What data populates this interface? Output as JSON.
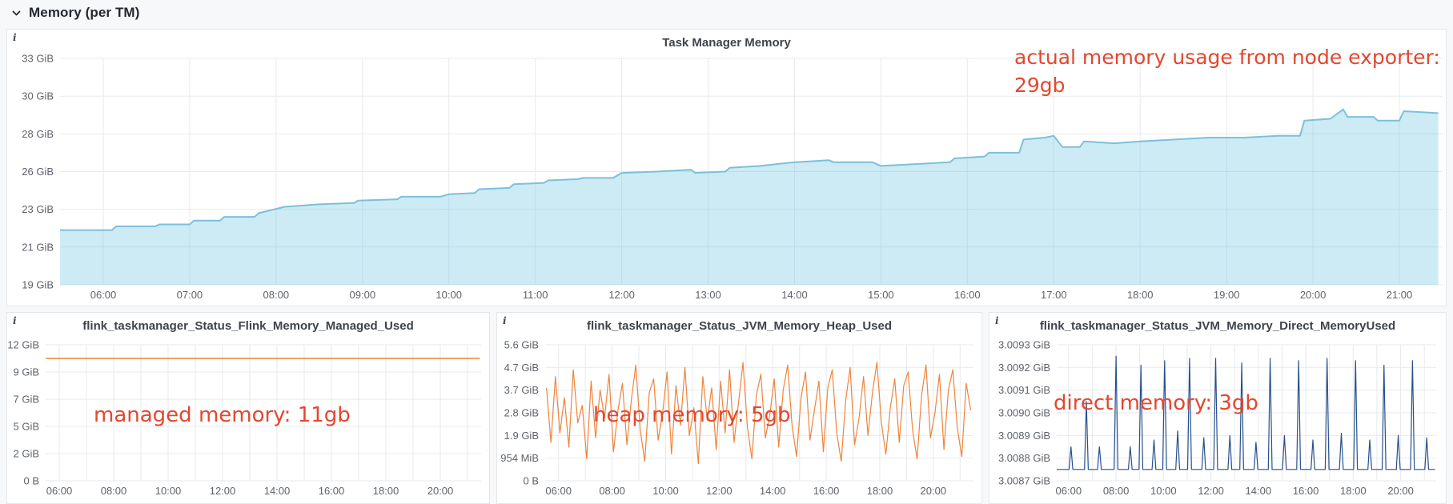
{
  "header": {
    "title": "Memory (per TM)"
  },
  "colors": {
    "annotation_red": "#e3472f",
    "axis_text": "#5e636a",
    "grid": "#e7e9ec",
    "title_text": "#3e434c",
    "area_line": "#7cc0da",
    "area_fill": "#70c5e0",
    "orange": "#EF843C",
    "navy": "#27508c"
  },
  "chart_data": [
    {
      "type": "area",
      "title": "Task Manager Memory",
      "info_icon": "i",
      "annotation": "actual memory usage from node exporter: 29gb",
      "unit": "GiB",
      "x_range": [
        5.5,
        21.5
      ],
      "x_grid": [
        6,
        7,
        8,
        9,
        10,
        11,
        12,
        13,
        14,
        15,
        16,
        17,
        18,
        19,
        20,
        21
      ],
      "x_ticks": [
        {
          "v": 6,
          "label": "06:00"
        },
        {
          "v": 7,
          "label": "07:00"
        },
        {
          "v": 8,
          "label": "08:00"
        },
        {
          "v": 9,
          "label": "09:00"
        },
        {
          "v": 10,
          "label": "10:00"
        },
        {
          "v": 11,
          "label": "11:00"
        },
        {
          "v": 12,
          "label": "12:00"
        },
        {
          "v": 13,
          "label": "13:00"
        },
        {
          "v": 14,
          "label": "14:00"
        },
        {
          "v": 15,
          "label": "15:00"
        },
        {
          "v": 16,
          "label": "16:00"
        },
        {
          "v": 17,
          "label": "17:00"
        },
        {
          "v": 18,
          "label": "18:00"
        },
        {
          "v": 19,
          "label": "19:00"
        },
        {
          "v": 20,
          "label": "20:00"
        },
        {
          "v": 21,
          "label": "21:00"
        }
      ],
      "y_ticks": [
        {
          "v": 19,
          "label": "19 GiB"
        },
        {
          "v": 21,
          "label": "21 GiB"
        },
        {
          "v": 23,
          "label": "23 GiB"
        },
        {
          "v": 26,
          "label": "26 GiB"
        },
        {
          "v": 28,
          "label": "28 GiB"
        },
        {
          "v": 30,
          "label": "30 GiB"
        },
        {
          "v": 33,
          "label": "33 GiB"
        }
      ],
      "color": "#7cc0da",
      "fill": "#70c5e0",
      "points": [
        [
          5.5,
          21.9
        ],
        [
          6.1,
          21.9
        ],
        [
          6.15,
          22.1
        ],
        [
          6.6,
          22.1
        ],
        [
          6.65,
          22.2
        ],
        [
          7.0,
          22.2
        ],
        [
          7.05,
          22.4
        ],
        [
          7.35,
          22.4
        ],
        [
          7.4,
          22.6
        ],
        [
          7.75,
          22.6
        ],
        [
          7.8,
          22.8
        ],
        [
          8.1,
          23.2
        ],
        [
          8.5,
          23.4
        ],
        [
          8.9,
          23.5
        ],
        [
          8.95,
          23.7
        ],
        [
          9.4,
          23.8
        ],
        [
          9.45,
          24.0
        ],
        [
          9.9,
          24.0
        ],
        [
          10.0,
          24.2
        ],
        [
          10.3,
          24.3
        ],
        [
          10.35,
          24.6
        ],
        [
          10.7,
          24.7
        ],
        [
          10.75,
          25.0
        ],
        [
          11.1,
          25.1
        ],
        [
          11.15,
          25.3
        ],
        [
          11.5,
          25.4
        ],
        [
          11.55,
          25.5
        ],
        [
          11.9,
          25.5
        ],
        [
          12.0,
          25.9
        ],
        [
          12.4,
          26.0
        ],
        [
          12.8,
          26.1
        ],
        [
          12.85,
          25.9
        ],
        [
          13.2,
          26.0
        ],
        [
          13.25,
          26.2
        ],
        [
          13.6,
          26.3
        ],
        [
          14.0,
          26.5
        ],
        [
          14.4,
          26.6
        ],
        [
          14.45,
          26.5
        ],
        [
          14.9,
          26.5
        ],
        [
          15.0,
          26.3
        ],
        [
          15.4,
          26.4
        ],
        [
          15.8,
          26.5
        ],
        [
          15.85,
          26.7
        ],
        [
          16.2,
          26.8
        ],
        [
          16.25,
          27.0
        ],
        [
          16.6,
          27.0
        ],
        [
          16.65,
          27.7
        ],
        [
          16.9,
          27.8
        ],
        [
          17.0,
          27.9
        ],
        [
          17.1,
          27.3
        ],
        [
          17.3,
          27.3
        ],
        [
          17.35,
          27.6
        ],
        [
          17.7,
          27.5
        ],
        [
          18.0,
          27.6
        ],
        [
          18.4,
          27.7
        ],
        [
          18.8,
          27.8
        ],
        [
          19.2,
          27.8
        ],
        [
          19.6,
          27.9
        ],
        [
          19.85,
          27.9
        ],
        [
          19.9,
          28.7
        ],
        [
          20.2,
          28.8
        ],
        [
          20.35,
          29.3
        ],
        [
          20.4,
          28.9
        ],
        [
          20.7,
          28.9
        ],
        [
          20.75,
          28.7
        ],
        [
          21.0,
          28.7
        ],
        [
          21.05,
          29.2
        ],
        [
          21.45,
          29.1
        ]
      ]
    },
    {
      "type": "line",
      "title": "flink_taskmanager_Status_Flink_Memory_Managed_Used",
      "info_icon": "i",
      "annotation": "managed memory: 11gb",
      "unit": "GiB",
      "x_range": [
        5.5,
        21.5
      ],
      "x_grid": [
        6,
        7,
        8,
        9,
        10,
        11,
        12,
        13,
        14,
        15,
        16,
        17,
        18,
        19,
        20,
        21
      ],
      "x_ticks": [
        {
          "v": 6,
          "label": "06:00"
        },
        {
          "v": 8,
          "label": "08:00"
        },
        {
          "v": 10,
          "label": "10:00"
        },
        {
          "v": 12,
          "label": "12:00"
        },
        {
          "v": 14,
          "label": "14:00"
        },
        {
          "v": 16,
          "label": "16:00"
        },
        {
          "v": 18,
          "label": "18:00"
        },
        {
          "v": 20,
          "label": "20:00"
        }
      ],
      "y_ticks": [
        {
          "v": 0,
          "label": "0 B"
        },
        {
          "v": 2,
          "label": "2 GiB"
        },
        {
          "v": 5,
          "label": "5 GiB"
        },
        {
          "v": 7,
          "label": "7 GiB"
        },
        {
          "v": 9,
          "label": "9 GiB"
        },
        {
          "v": 12,
          "label": "12 GiB"
        }
      ],
      "color": "#EF843C",
      "points": [
        [
          5.5,
          10.5
        ],
        [
          21.45,
          10.5
        ]
      ]
    },
    {
      "type": "line",
      "title": "flink_taskmanager_Status_JVM_Memory_Heap_Used",
      "info_icon": "i",
      "annotation": "heap memory: 5gb",
      "unit": "GiB",
      "x_range": [
        5.5,
        21.5
      ],
      "x_grid": [
        6,
        7,
        8,
        9,
        10,
        11,
        12,
        13,
        14,
        15,
        16,
        17,
        18,
        19,
        20,
        21
      ],
      "x_ticks": [
        {
          "v": 6,
          "label": "06:00"
        },
        {
          "v": 8,
          "label": "08:00"
        },
        {
          "v": 10,
          "label": "10:00"
        },
        {
          "v": 12,
          "label": "12:00"
        },
        {
          "v": 14,
          "label": "14:00"
        },
        {
          "v": 16,
          "label": "16:00"
        },
        {
          "v": 18,
          "label": "18:00"
        },
        {
          "v": 20,
          "label": "20:00"
        }
      ],
      "y_ticks": [
        {
          "v": 0,
          "label": "0 B"
        },
        {
          "v": 0.932,
          "label": "954 MiB"
        },
        {
          "v": 1.9,
          "label": "1.9 GiB"
        },
        {
          "v": 2.8,
          "label": "2.8 GiB"
        },
        {
          "v": 3.7,
          "label": "3.7 GiB"
        },
        {
          "v": 4.7,
          "label": "4.7 GiB"
        },
        {
          "v": 5.6,
          "label": "5.6 GiB"
        }
      ],
      "color": "#EF843C",
      "x_start": 5.55,
      "x_step": 0.1668,
      "values": [
        3.8,
        1.6,
        4.3,
        2.0,
        3.4,
        1.4,
        4.6,
        2.4,
        3.1,
        0.9,
        4.1,
        1.8,
        3.7,
        2.6,
        4.4,
        1.2,
        2.9,
        4.0,
        1.5,
        3.3,
        4.8,
        2.1,
        0.8,
        3.6,
        4.2,
        1.7,
        2.8,
        4.5,
        1.1,
        3.9,
        2.3,
        4.7,
        1.9,
        3.0,
        0.7,
        4.3,
        2.5,
        3.8,
        1.3,
        4.1,
        2.0,
        4.6,
        1.6,
        3.2,
        4.9,
        2.2,
        0.9,
        3.5,
        4.4,
        1.8,
        2.7,
        4.2,
        1.4,
        3.7,
        4.8,
        2.3,
        1.0,
        3.4,
        4.5,
        1.7,
        2.9,
        4.1,
        1.2,
        3.8,
        4.6,
        2.0,
        0.8,
        3.3,
        4.7,
        1.5,
        2.6,
        4.3,
        1.9,
        3.6,
        4.9,
        2.4,
        1.1,
        3.0,
        4.2,
        1.6,
        3.9,
        4.5,
        2.1,
        0.9,
        3.5,
        4.8,
        1.8,
        2.8,
        4.4,
        1.3,
        3.7,
        4.6,
        2.2,
        1.0,
        4.0,
        2.9
      ]
    },
    {
      "type": "line",
      "title": "flink_taskmanager_Status_JVM_Memory_Direct_MemoryUsed",
      "info_icon": "i",
      "annotation": "direct memory: 3gb",
      "unit": "GiB",
      "x_range": [
        5.5,
        21.5
      ],
      "x_grid": [
        6,
        7,
        8,
        9,
        10,
        11,
        12,
        13,
        14,
        15,
        16,
        17,
        18,
        19,
        20,
        21
      ],
      "x_ticks": [
        {
          "v": 6,
          "label": "06:00"
        },
        {
          "v": 8,
          "label": "08:00"
        },
        {
          "v": 10,
          "label": "10:00"
        },
        {
          "v": 12,
          "label": "12:00"
        },
        {
          "v": 14,
          "label": "14:00"
        },
        {
          "v": 16,
          "label": "16:00"
        },
        {
          "v": 18,
          "label": "18:00"
        },
        {
          "v": 20,
          "label": "20:00"
        }
      ],
      "y_ticks": [
        {
          "v": 3.0087,
          "label": "3.0087 GiB"
        },
        {
          "v": 3.0088,
          "label": "3.0088 GiB"
        },
        {
          "v": 3.0089,
          "label": "3.0089 GiB"
        },
        {
          "v": 3.009,
          "label": "3.0090 GiB"
        },
        {
          "v": 3.0091,
          "label": "3.0091 GiB"
        },
        {
          "v": 3.0092,
          "label": "3.0092 GiB"
        },
        {
          "v": 3.0093,
          "label": "3.0093 GiB"
        }
      ],
      "color": "#27508c",
      "baseline": 3.00875,
      "spikes": [
        [
          6.1,
          3.00885
        ],
        [
          6.75,
          3.00905
        ],
        [
          7.3,
          3.00885
        ],
        [
          8.0,
          3.00925
        ],
        [
          8.6,
          3.00885
        ],
        [
          9.05,
          3.00921
        ],
        [
          9.6,
          3.00888
        ],
        [
          10.05,
          3.00923
        ],
        [
          10.6,
          3.00892
        ],
        [
          11.1,
          3.00924
        ],
        [
          11.7,
          3.00889
        ],
        [
          12.2,
          3.00924
        ],
        [
          12.8,
          3.0089
        ],
        [
          13.3,
          3.00922
        ],
        [
          13.9,
          3.00887
        ],
        [
          14.5,
          3.00924
        ],
        [
          15.1,
          3.0089
        ],
        [
          15.7,
          3.00923
        ],
        [
          16.3,
          3.00888
        ],
        [
          16.9,
          3.00924
        ],
        [
          17.5,
          3.00891
        ],
        [
          18.1,
          3.00923
        ],
        [
          18.7,
          3.00888
        ],
        [
          19.3,
          3.00921
        ],
        [
          19.9,
          3.0089
        ],
        [
          20.5,
          3.00923
        ],
        [
          21.1,
          3.00889
        ]
      ]
    }
  ]
}
